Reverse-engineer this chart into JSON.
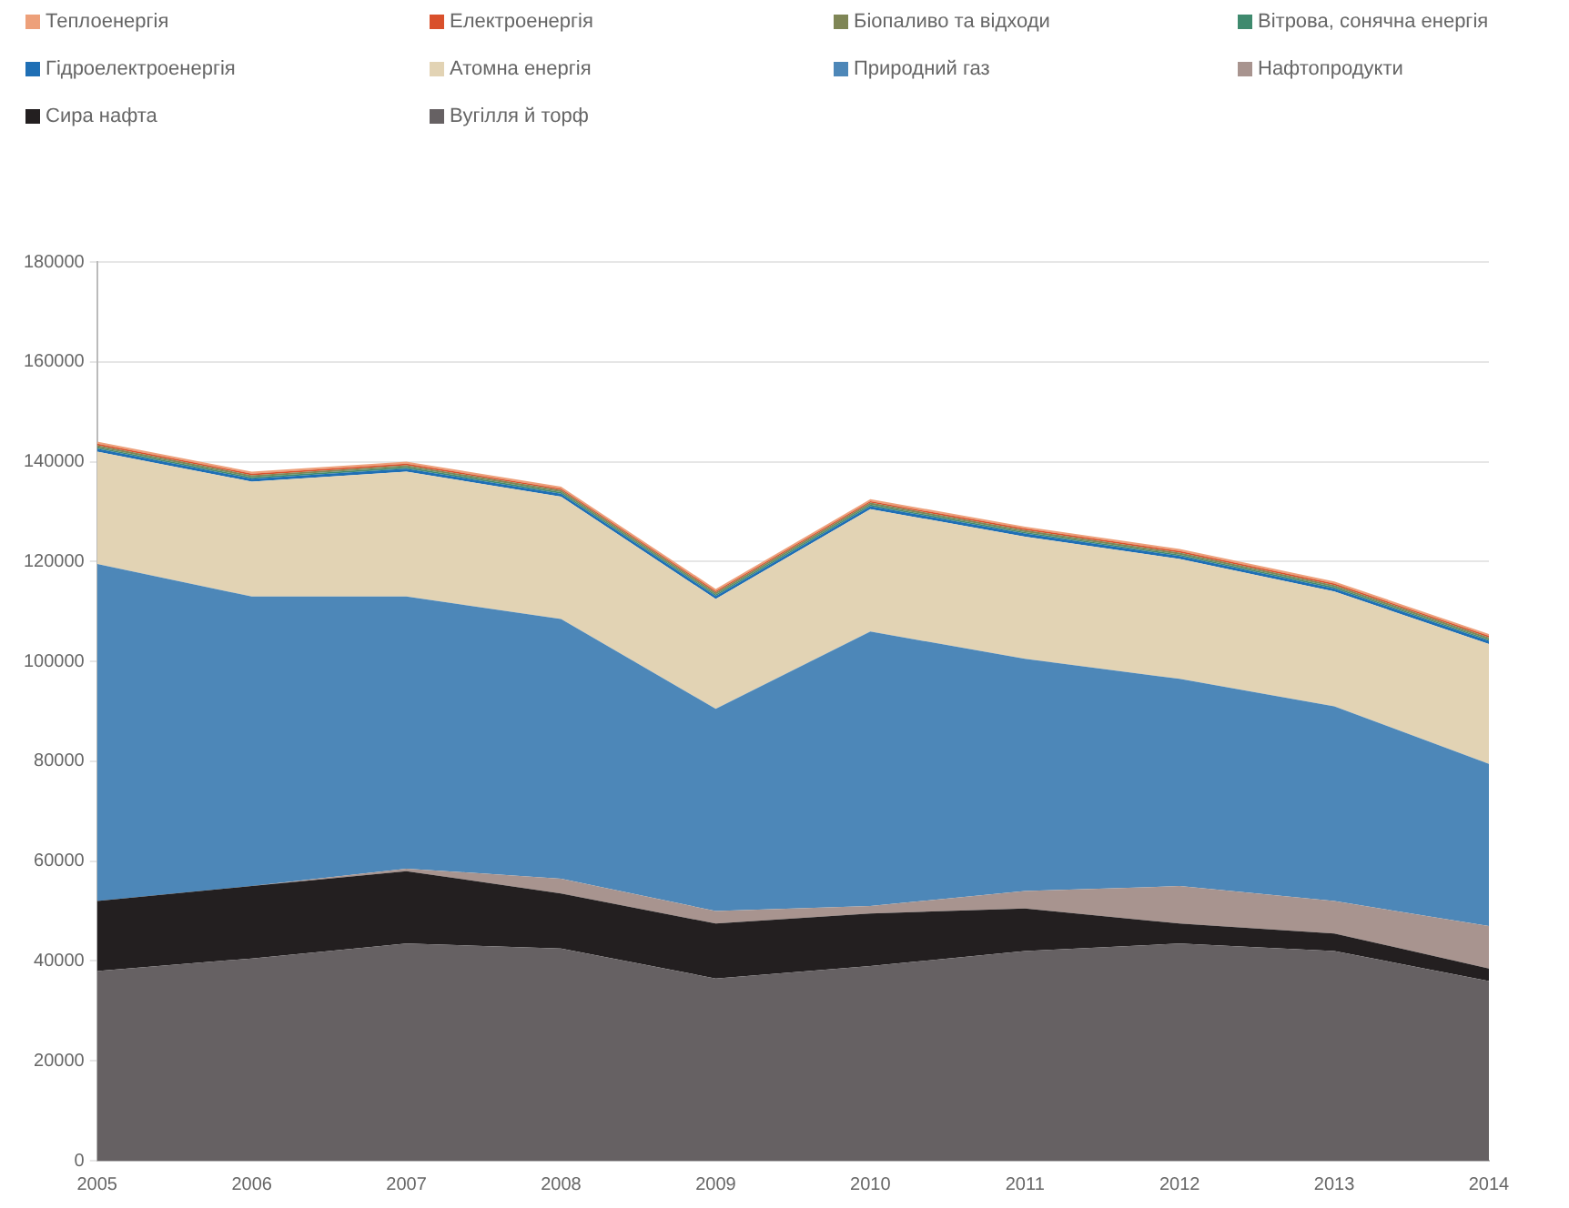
{
  "chart_data": {
    "type": "area",
    "stacked": true,
    "legend": "top",
    "grid": "y",
    "marker": "none",
    "categories": [
      "2005",
      "2006",
      "2007",
      "2008",
      "2009",
      "2010",
      "2011",
      "2012",
      "2013",
      "2014"
    ],
    "ylim": [
      0,
      180000
    ],
    "yticks": [
      0,
      20000,
      40000,
      60000,
      80000,
      100000,
      120000,
      140000,
      160000,
      180000
    ],
    "series": [
      {
        "name": "Вугілля й торф",
        "color": "#666163",
        "values": [
          38000,
          40500,
          43500,
          42500,
          36500,
          39000,
          42000,
          43500,
          42000,
          36000
        ]
      },
      {
        "name": "Сира нафта",
        "color": "#231f20",
        "values": [
          14000,
          14500,
          14500,
          11000,
          11000,
          10500,
          8500,
          4000,
          3500,
          2500
        ]
      },
      {
        "name": "Нафтопродукти",
        "color": "#a8948f",
        "values": [
          0,
          0,
          500,
          3000,
          2500,
          1500,
          3500,
          7500,
          6500,
          8500
        ]
      },
      {
        "name": "Природний газ",
        "color": "#4d87b8",
        "values": [
          67500,
          58000,
          54500,
          52000,
          40500,
          55000,
          46500,
          41500,
          39000,
          32500
        ]
      },
      {
        "name": "Атомна енергія",
        "color": "#e2d3b4",
        "values": [
          22500,
          23000,
          25000,
          24500,
          22000,
          24500,
          24500,
          24000,
          23000,
          24000
        ]
      },
      {
        "name": "Гідроелектроенергія",
        "color": "#1f6fb5",
        "values": [
          600,
          600,
          600,
          600,
          600,
          600,
          600,
          600,
          600,
          600
        ]
      },
      {
        "name": "Вітрова, сонячна енергія",
        "color": "#3f8a6e",
        "values": [
          300,
          300,
          300,
          300,
          300,
          300,
          300,
          300,
          300,
          300
        ]
      },
      {
        "name": "Біопаливо та відходи",
        "color": "#7f8656",
        "values": [
          400,
          400,
          400,
          400,
          400,
          400,
          400,
          400,
          400,
          400
        ]
      },
      {
        "name": "Електроенергія",
        "color": "#d9502b",
        "values": [
          300,
          300,
          300,
          300,
          300,
          300,
          300,
          300,
          300,
          300
        ]
      },
      {
        "name": "Теплоенергія",
        "color": "#eda07a",
        "values": [
          400,
          400,
          400,
          400,
          400,
          400,
          400,
          400,
          400,
          400
        ]
      }
    ]
  }
}
